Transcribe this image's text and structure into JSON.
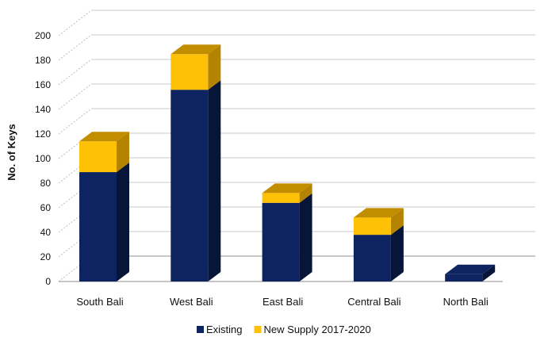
{
  "chart_data": {
    "type": "bar",
    "stacked": true,
    "three_d": true,
    "categories": [
      "South Bali",
      "West Bali",
      "East Bali",
      "Central Bali",
      "North Bali"
    ],
    "series": [
      {
        "name": "Existing",
        "values": [
          89,
          156,
          64,
          38,
          6
        ],
        "color": "#0d2460",
        "top_color": "#0d2460",
        "side_color": "#071638"
      },
      {
        "name": "New Supply 2017-2020",
        "values": [
          25,
          29,
          8,
          14,
          0
        ],
        "color": "#fec106",
        "top_color": "#c28e00",
        "side_color": "#b48300"
      }
    ],
    "ylabel": "No. of Keys",
    "xlabel": "",
    "ylim": [
      0,
      200
    ],
    "yticks": [
      0,
      20,
      40,
      60,
      80,
      100,
      120,
      140,
      160,
      180,
      200
    ],
    "grid": true,
    "legend_position": "bottom"
  }
}
